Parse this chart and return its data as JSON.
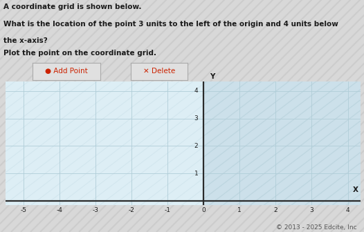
{
  "title_line1": "A coordinate grid is shown below.",
  "title_line2": "What is the location of the point 3 units to the left of the origin and 4 units below",
  "title_line3": "the x-axis?",
  "title_line4": "Plot the point on the coordinate grid.",
  "button1_label": "● Add Point",
  "button2_label": "✕ Delete",
  "copyright": "© 2013 - 2025 Edcite, Inc",
  "x_min": -5,
  "x_max": 4,
  "y_min": 0,
  "y_max": 4,
  "xticks": [
    -5,
    -4,
    -3,
    -2,
    -1,
    0,
    1,
    2,
    3,
    4
  ],
  "yticks": [
    1,
    2,
    3,
    4
  ],
  "xlabel": "X",
  "ylabel": "Y",
  "left_bg": "#ddeef5",
  "right_bg": "#cce0ea",
  "stripe_color": "#b8d2dc",
  "grid_line_color": "#b0cdd8",
  "axis_color": "#2a2a2a",
  "fig_bg_stripe1": "#d8d8d8",
  "fig_bg_stripe2": "#e8e8e8",
  "text_color": "#1a1a1a",
  "btn_bg": "#e0e0e0",
  "btn_border": "#aaaaaa",
  "btn1_color": "#cc2200",
  "btn2_color": "#cc2200",
  "copyright_color": "#555555",
  "title_fontsize": 7.5,
  "tick_fontsize": 6.5,
  "axis_label_fontsize": 7.5,
  "btn_fontsize": 7.5,
  "copyright_fontsize": 6.5
}
